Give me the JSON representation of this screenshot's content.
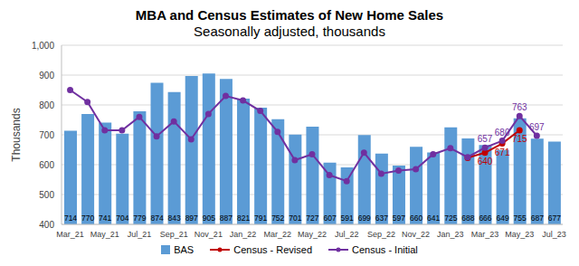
{
  "chart_data": {
    "type": "bar",
    "title": "MBA and Census Estimates of New Home Sales",
    "subtitle": "Seasonally adjusted, thousands",
    "y_label": "Thousands",
    "categories": [
      "Mar_21",
      null,
      "May_21",
      null,
      "Jul_21",
      null,
      "Sep_21",
      null,
      "Nov_21",
      null,
      "Jan_22",
      null,
      "Mar_22",
      null,
      "May_22",
      null,
      "Jul_22",
      null,
      "Sep_22",
      null,
      "Nov_22",
      null,
      "Jan_23",
      null,
      "Mar_23",
      null,
      "May_23",
      null,
      "Jul_23"
    ],
    "series": [
      {
        "name": "BAS",
        "type": "bar",
        "color": "#5b9bd5",
        "data_labels": true,
        "values": [
          714,
          770,
          741,
          704,
          779,
          874,
          843,
          897,
          905,
          887,
          821,
          791,
          752,
          701,
          727,
          607,
          591,
          699,
          637,
          597,
          660,
          641,
          725,
          688,
          666,
          649,
          755,
          687,
          677
        ]
      },
      {
        "name": "Census - Revised",
        "type": "line",
        "color": "#c00000",
        "marker": "circle",
        "values": [
          null,
          null,
          null,
          null,
          null,
          null,
          null,
          null,
          null,
          null,
          null,
          null,
          null,
          null,
          null,
          null,
          null,
          null,
          null,
          null,
          null,
          null,
          null,
          623,
          640,
          671,
          715,
          null,
          null
        ],
        "value_labels": [
          null,
          null,
          null,
          null,
          null,
          null,
          null,
          null,
          null,
          null,
          null,
          null,
          null,
          null,
          null,
          null,
          null,
          null,
          null,
          null,
          null,
          null,
          null,
          null,
          "640",
          "671",
          "715",
          null,
          null
        ]
      },
      {
        "name": "Census - Initial",
        "type": "line",
        "color": "#7030a0",
        "marker": "circle",
        "values": [
          850,
          810,
          715,
          715,
          760,
          695,
          745,
          685,
          770,
          830,
          815,
          780,
          710,
          615,
          635,
          565,
          545,
          640,
          570,
          580,
          585,
          635,
          655,
          625,
          657,
          680,
          763,
          697,
          null
        ],
        "value_labels": [
          null,
          null,
          null,
          null,
          null,
          null,
          null,
          null,
          null,
          null,
          null,
          null,
          null,
          null,
          null,
          null,
          null,
          null,
          null,
          null,
          null,
          null,
          null,
          null,
          "657",
          "680",
          "763",
          "697",
          null
        ]
      }
    ],
    "ylim": [
      400,
      1000
    ],
    "yticks": [
      400,
      500,
      600,
      700,
      800,
      900,
      {
        "value": 1000,
        "label": "1,000"
      }
    ],
    "grid": true,
    "legend": "bottom"
  }
}
